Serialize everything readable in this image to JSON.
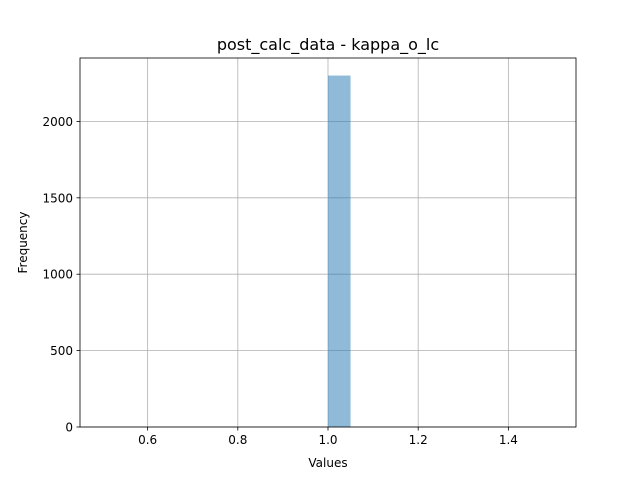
{
  "chart_data": {
    "type": "bar",
    "title": "post_calc_data - kappa_o_lc",
    "xlabel": "Values",
    "ylabel": "Frequency",
    "xlim": [
      0.45,
      1.55
    ],
    "ylim": [
      0,
      2415
    ],
    "grid": true,
    "x_ticks": [
      0.6,
      0.8,
      1.0,
      1.2,
      1.4
    ],
    "x_tick_labels": [
      "0.6",
      "0.8",
      "1.0",
      "1.2",
      "1.4"
    ],
    "y_ticks": [
      0,
      500,
      1000,
      1500,
      2000
    ],
    "y_tick_labels": [
      "0",
      "500",
      "1000",
      "1500",
      "2000"
    ],
    "bins": [
      {
        "x0": 1.0,
        "x1": 1.05,
        "value": 2300
      }
    ],
    "bar_color": "#1f77b4",
    "bar_opacity": 0.5
  }
}
